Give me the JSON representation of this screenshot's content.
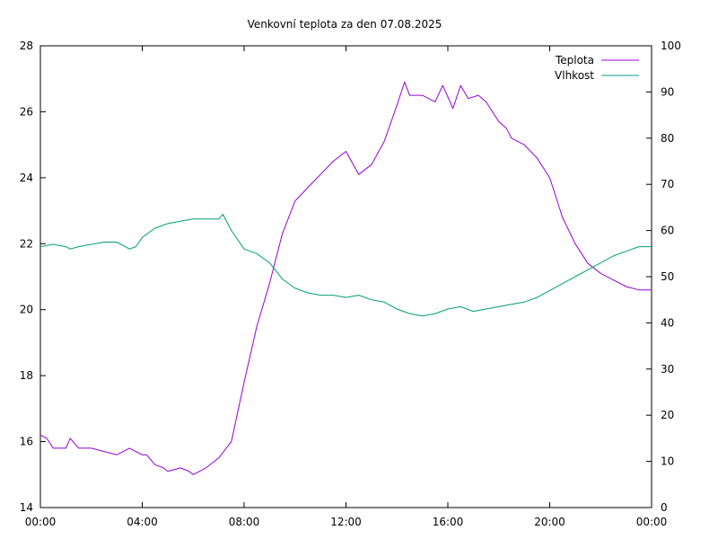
{
  "chart_data": {
    "type": "line",
    "title": "Venkovní teplota za den 07.08.2025",
    "xlabel": "",
    "ylabel": "",
    "y2label": "",
    "grid": false,
    "legend_position": "top-right",
    "xlim_hours": [
      0,
      24
    ],
    "x_ticks": [
      "00:00",
      "04:00",
      "08:00",
      "12:00",
      "16:00",
      "20:00",
      "00:00"
    ],
    "ylim": [
      14,
      28
    ],
    "y_ticks": [
      "14",
      "16",
      "18",
      "20",
      "22",
      "24",
      "26",
      "28"
    ],
    "y2lim": [
      0,
      100
    ],
    "y2_ticks": [
      "0",
      "10",
      "20",
      "30",
      "40",
      "50",
      "60",
      "70",
      "80",
      "90",
      "100"
    ],
    "series": [
      {
        "name": "Teplota",
        "axis": "y1",
        "color": "#9400d3",
        "x_hours": [
          0,
          0.25,
          0.5,
          1,
          1.17,
          1.5,
          2,
          2.5,
          3,
          3.5,
          4,
          4.17,
          4.5,
          4.83,
          5,
          5.5,
          5.83,
          6,
          6.5,
          7,
          7.5,
          8,
          8.5,
          9,
          9.5,
          10,
          10.5,
          11,
          11.5,
          12,
          12.5,
          13,
          13.5,
          14,
          14.3,
          14.5,
          15,
          15.5,
          15.8,
          16.2,
          16.5,
          16.8,
          17.2,
          17.5,
          18,
          18.3,
          18.5,
          19,
          19.5,
          20,
          20.5,
          21,
          21.5,
          22,
          22.5,
          23,
          23.5,
          24
        ],
        "values": [
          16.2,
          16.1,
          15.8,
          15.8,
          16.1,
          15.8,
          15.8,
          15.7,
          15.6,
          15.8,
          15.6,
          15.6,
          15.3,
          15.2,
          15.1,
          15.2,
          15.1,
          15.0,
          15.2,
          15.5,
          16.0,
          17.8,
          19.5,
          20.8,
          22.3,
          23.3,
          23.7,
          24.1,
          24.5,
          24.8,
          24.1,
          24.4,
          25.1,
          26.2,
          26.9,
          26.5,
          26.5,
          26.3,
          26.8,
          26.1,
          26.8,
          26.4,
          26.5,
          26.3,
          25.7,
          25.5,
          25.2,
          25.0,
          24.6,
          24.0,
          22.8,
          22.0,
          21.4,
          21.1,
          20.9,
          20.7,
          20.6,
          20.6
        ]
      },
      {
        "name": "Vlhkost",
        "axis": "y2",
        "color": "#009e73",
        "x_hours": [
          0,
          0.5,
          1,
          1.17,
          1.5,
          2,
          2.5,
          3,
          3.5,
          3.75,
          4,
          4.5,
          5,
          5.5,
          6,
          6.5,
          7,
          7.17,
          7.5,
          8,
          8.5,
          9,
          9.5,
          10,
          10.5,
          11,
          11.5,
          12,
          12.5,
          13,
          13.5,
          14,
          14.5,
          15,
          15.5,
          16,
          16.5,
          17,
          17.5,
          18,
          18.5,
          19,
          19.5,
          20,
          20.5,
          21,
          21.5,
          22,
          22.5,
          23,
          23.5,
          24
        ],
        "values": [
          56.5,
          57.0,
          56.5,
          56.0,
          56.5,
          57.0,
          57.5,
          57.5,
          56.0,
          56.5,
          58.5,
          60.5,
          61.5,
          62.0,
          62.5,
          62.5,
          62.5,
          63.5,
          60.0,
          56.0,
          55.0,
          53.0,
          49.5,
          47.5,
          46.5,
          46.0,
          46.0,
          45.5,
          46.0,
          45.0,
          44.5,
          43.0,
          42.0,
          41.5,
          42.0,
          43.0,
          43.5,
          42.5,
          43.0,
          43.5,
          44.0,
          44.5,
          45.5,
          47.0,
          48.5,
          50.0,
          51.5,
          53.0,
          54.5,
          55.5,
          56.5,
          56.5
        ]
      }
    ]
  }
}
